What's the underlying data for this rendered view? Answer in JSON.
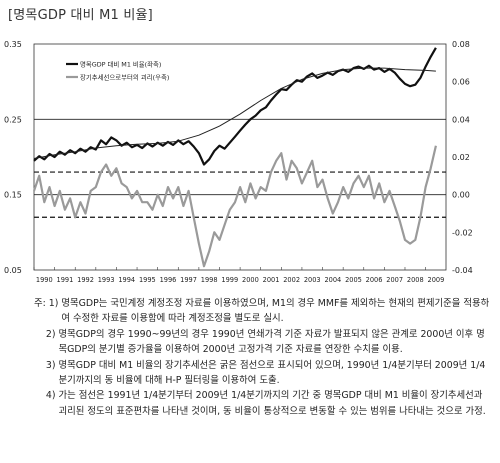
{
  "title": "[명목GDP 대비 M1 비율]",
  "chart_data": {
    "type": "line",
    "left_axis": {
      "ticks": [
        0.05,
        0.15,
        0.25,
        0.35
      ],
      "labels": [
        "0.05",
        "0.15",
        "0.25",
        "0.35"
      ],
      "range": [
        0.05,
        0.35
      ]
    },
    "right_axis": {
      "ticks": [
        -0.04,
        -0.02,
        0.0,
        0.02,
        0.04,
        0.06,
        0.08
      ],
      "labels": [
        "-0.04",
        "-0.02",
        "0.00",
        "0.02",
        "0.04",
        "0.06",
        "0.08"
      ],
      "range": [
        -0.04,
        0.08
      ]
    },
    "x_labels": [
      "1990",
      "1991",
      "1992",
      "1993",
      "1994",
      "1995",
      "1996",
      "1997",
      "1998",
      "1999",
      "2000",
      "2001",
      "2002",
      "2003",
      "2004",
      "2005",
      "2006",
      "2007",
      "2008",
      "2009"
    ],
    "x_range": [
      1990,
      2009.99
    ],
    "legend": [
      {
        "text": "명목GDP 대비 M1 비율(좌축)"
      },
      {
        "text": "장기추세선으로부터의 괴리(우축)"
      }
    ],
    "reference_lines": {
      "left_axis_solid": 0.25,
      "right_axis_solid": 0.0,
      "right_axis_dashed": [
        0.012,
        -0.012
      ]
    },
    "series": [
      {
        "axis": "left",
        "style": "thick",
        "points": [
          [
            1990.0,
            0.195
          ],
          [
            1990.25,
            0.201
          ],
          [
            1990.5,
            0.197
          ],
          [
            1990.75,
            0.204
          ],
          [
            1991.0,
            0.2
          ],
          [
            1991.25,
            0.207
          ],
          [
            1991.5,
            0.203
          ],
          [
            1991.75,
            0.209
          ],
          [
            1992.0,
            0.205
          ],
          [
            1992.25,
            0.211
          ],
          [
            1992.5,
            0.207
          ],
          [
            1992.75,
            0.213
          ],
          [
            1993.0,
            0.21
          ],
          [
            1993.25,
            0.222
          ],
          [
            1993.5,
            0.217
          ],
          [
            1993.75,
            0.226
          ],
          [
            1994.0,
            0.222
          ],
          [
            1994.25,
            0.215
          ],
          [
            1994.5,
            0.219
          ],
          [
            1994.75,
            0.213
          ],
          [
            1995.0,
            0.216
          ],
          [
            1995.25,
            0.212
          ],
          [
            1995.5,
            0.218
          ],
          [
            1995.75,
            0.214
          ],
          [
            1996.0,
            0.219
          ],
          [
            1996.25,
            0.215
          ],
          [
            1996.5,
            0.22
          ],
          [
            1996.75,
            0.216
          ],
          [
            1997.0,
            0.222
          ],
          [
            1997.25,
            0.217
          ],
          [
            1997.5,
            0.221
          ],
          [
            1997.75,
            0.214
          ],
          [
            1998.0,
            0.205
          ],
          [
            1998.25,
            0.19
          ],
          [
            1998.5,
            0.197
          ],
          [
            1998.75,
            0.208
          ],
          [
            1999.0,
            0.215
          ],
          [
            1999.25,
            0.211
          ],
          [
            1999.5,
            0.219
          ],
          [
            1999.75,
            0.227
          ],
          [
            2000.0,
            0.235
          ],
          [
            2000.25,
            0.243
          ],
          [
            2000.5,
            0.25
          ],
          [
            2000.75,
            0.255
          ],
          [
            2001.0,
            0.262
          ],
          [
            2001.25,
            0.266
          ],
          [
            2001.5,
            0.275
          ],
          [
            2001.75,
            0.283
          ],
          [
            2002.0,
            0.29
          ],
          [
            2002.25,
            0.289
          ],
          [
            2002.5,
            0.296
          ],
          [
            2002.75,
            0.302
          ],
          [
            2003.0,
            0.3
          ],
          [
            2003.25,
            0.307
          ],
          [
            2003.5,
            0.311
          ],
          [
            2003.75,
            0.305
          ],
          [
            2004.0,
            0.308
          ],
          [
            2004.25,
            0.312
          ],
          [
            2004.5,
            0.309
          ],
          [
            2004.75,
            0.314
          ],
          [
            2005.0,
            0.316
          ],
          [
            2005.25,
            0.313
          ],
          [
            2005.5,
            0.318
          ],
          [
            2005.75,
            0.32
          ],
          [
            2006.0,
            0.317
          ],
          [
            2006.25,
            0.321
          ],
          [
            2006.5,
            0.316
          ],
          [
            2006.75,
            0.318
          ],
          [
            2007.0,
            0.313
          ],
          [
            2007.25,
            0.317
          ],
          [
            2007.5,
            0.312
          ],
          [
            2007.75,
            0.304
          ],
          [
            2008.0,
            0.297
          ],
          [
            2008.25,
            0.294
          ],
          [
            2008.5,
            0.296
          ],
          [
            2008.75,
            0.305
          ],
          [
            2009.0,
            0.32
          ],
          [
            2009.25,
            0.333
          ],
          [
            2009.5,
            0.345
          ]
        ]
      },
      {
        "axis": "left",
        "style": "trend",
        "points": [
          [
            1990.0,
            0.198
          ],
          [
            1991.0,
            0.203
          ],
          [
            1992.0,
            0.207
          ],
          [
            1993.0,
            0.212
          ],
          [
            1994.0,
            0.215
          ],
          [
            1995.0,
            0.217
          ],
          [
            1996.0,
            0.218
          ],
          [
            1997.0,
            0.221
          ],
          [
            1998.0,
            0.229
          ],
          [
            1999.0,
            0.241
          ],
          [
            2000.0,
            0.257
          ],
          [
            2001.0,
            0.275
          ],
          [
            2002.0,
            0.291
          ],
          [
            2003.0,
            0.303
          ],
          [
            2004.0,
            0.311
          ],
          [
            2005.0,
            0.316
          ],
          [
            2006.0,
            0.318
          ],
          [
            2007.0,
            0.318
          ],
          [
            2008.0,
            0.316
          ],
          [
            2009.0,
            0.315
          ],
          [
            2009.5,
            0.314
          ]
        ]
      },
      {
        "axis": "right",
        "style": "gray",
        "points": [
          [
            1990.0,
            0.002
          ],
          [
            1990.25,
            0.01
          ],
          [
            1990.5,
            -0.004
          ],
          [
            1990.75,
            0.004
          ],
          [
            1991.0,
            -0.006
          ],
          [
            1991.25,
            0.002
          ],
          [
            1991.5,
            -0.008
          ],
          [
            1991.75,
            -0.002
          ],
          [
            1992.0,
            -0.012
          ],
          [
            1992.25,
            -0.004
          ],
          [
            1992.5,
            -0.01
          ],
          [
            1992.75,
            0.002
          ],
          [
            1993.0,
            0.004
          ],
          [
            1993.25,
            0.012
          ],
          [
            1993.5,
            0.016
          ],
          [
            1993.75,
            0.01
          ],
          [
            1994.0,
            0.014
          ],
          [
            1994.25,
            0.006
          ],
          [
            1994.5,
            0.004
          ],
          [
            1994.75,
            -0.002
          ],
          [
            1995.0,
            0.002
          ],
          [
            1995.25,
            -0.004
          ],
          [
            1995.5,
            -0.004
          ],
          [
            1995.75,
            -0.008
          ],
          [
            1996.0,
            0.0
          ],
          [
            1996.25,
            -0.006
          ],
          [
            1996.5,
            0.004
          ],
          [
            1996.75,
            -0.002
          ],
          [
            1997.0,
            0.004
          ],
          [
            1997.25,
            -0.006
          ],
          [
            1997.5,
            0.002
          ],
          [
            1997.75,
            -0.012
          ],
          [
            1998.0,
            -0.026
          ],
          [
            1998.25,
            -0.038
          ],
          [
            1998.5,
            -0.03
          ],
          [
            1998.75,
            -0.02
          ],
          [
            1999.0,
            -0.024
          ],
          [
            1999.25,
            -0.016
          ],
          [
            1999.5,
            -0.008
          ],
          [
            1999.75,
            -0.004
          ],
          [
            2000.0,
            0.004
          ],
          [
            2000.25,
            -0.004
          ],
          [
            2000.5,
            0.006
          ],
          [
            2000.75,
            -0.002
          ],
          [
            2001.0,
            0.004
          ],
          [
            2001.25,
            0.002
          ],
          [
            2001.5,
            0.012
          ],
          [
            2001.75,
            0.018
          ],
          [
            2002.0,
            0.022
          ],
          [
            2002.25,
            0.008
          ],
          [
            2002.5,
            0.018
          ],
          [
            2002.75,
            0.014
          ],
          [
            2003.0,
            0.006
          ],
          [
            2003.25,
            0.012
          ],
          [
            2003.5,
            0.018
          ],
          [
            2003.75,
            0.004
          ],
          [
            2004.0,
            0.008
          ],
          [
            2004.25,
            -0.002
          ],
          [
            2004.5,
            -0.01
          ],
          [
            2004.75,
            -0.004
          ],
          [
            2005.0,
            0.004
          ],
          [
            2005.25,
            -0.002
          ],
          [
            2005.5,
            0.006
          ],
          [
            2005.75,
            0.01
          ],
          [
            2006.0,
            0.004
          ],
          [
            2006.25,
            0.01
          ],
          [
            2006.5,
            -0.002
          ],
          [
            2006.75,
            0.006
          ],
          [
            2007.0,
            -0.004
          ],
          [
            2007.25,
            0.002
          ],
          [
            2007.5,
            -0.006
          ],
          [
            2007.75,
            -0.014
          ],
          [
            2008.0,
            -0.024
          ],
          [
            2008.25,
            -0.026
          ],
          [
            2008.5,
            -0.024
          ],
          [
            2008.75,
            -0.012
          ],
          [
            2009.0,
            0.004
          ],
          [
            2009.25,
            0.014
          ],
          [
            2009.5,
            0.026
          ]
        ]
      }
    ]
  },
  "notes": [
    {
      "prefix": "주: 1) ",
      "text": "명목GDP는 국민계정 계정조정 자료를 이용하였으며, M1의 경우 MMF를 제외하는 현재의 편제기준을 적용하여 수정한 자료를 이용함에 따라 계정조정을 별도로 실시."
    },
    {
      "prefix": "    2) ",
      "text": "명목GDP의 경우 1990~99년의 경우 1990년 연쇄가격 기준 자료가 발표되지 않은 관계로 2000년 이후 명목GDP의 분기별 증가율을 이용하여 2000년 고정가격 기준 자료를 연장한 수치를 이용."
    },
    {
      "prefix": "    3) ",
      "text": "명목GDP 대비 M1 비율의 장기추세선은 굵은 점선으로 표시되어 있으며, 1990년 1/4분기부터 2009년 1/4분기까지의 동 비율에 대해 H-P 필터링을 이용하여 도출."
    },
    {
      "prefix": "    4) ",
      "text": "가는 점선은 1991년 1/4분기부터 2009년 1/4분기까지의 기간 중 명목GDP 대비 M1 비율이 장기추세선과 괴리된 정도의 표준편차를 나타낸 것이며, 동 비율이 통상적으로 변동할 수 있는 범위를 나타내는 것으로 가정."
    }
  ]
}
